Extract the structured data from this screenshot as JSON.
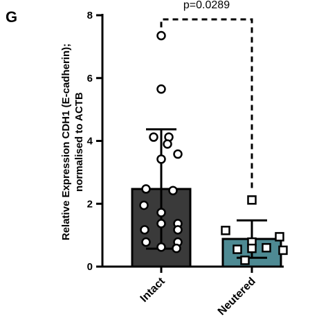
{
  "panel_label": "G",
  "chart_data": {
    "type": "bar",
    "title": "",
    "ylabel_line1": "Relative Expression CDH1 (E-cadherin);",
    "ylabel_line2": "normalised to ACTB",
    "ylim": [
      0,
      8
    ],
    "yticks": [
      {
        "value": 0,
        "label": "0"
      },
      {
        "value": 2,
        "label": "2"
      },
      {
        "value": 4,
        "label": "4"
      },
      {
        "value": 6,
        "label": "6"
      },
      {
        "value": 8,
        "label": "8"
      }
    ],
    "categories": [
      "Intact",
      "Neutered"
    ],
    "bars": [
      {
        "category": "Intact",
        "mean": 2.47,
        "sd_upper": 4.37,
        "sd_lower": 0.57,
        "color": "#3a3a3a",
        "marker": "circle",
        "points": [
          7.35,
          5.65,
          4.12,
          4.12,
          3.9,
          3.42,
          3.58,
          2.47,
          2.42,
          1.95,
          1.72,
          1.37,
          1.37,
          1.17,
          1.17,
          0.78,
          0.78,
          0.62,
          0.58
        ]
      },
      {
        "category": "Neutered",
        "mean": 0.88,
        "sd_upper": 1.47,
        "sd_lower": 0.28,
        "color": "#4e8a93",
        "marker": "square",
        "points": [
          2.12,
          1.15,
          0.95,
          0.78,
          0.6,
          0.58,
          0.55,
          0.52,
          0.2
        ]
      }
    ],
    "significance": {
      "text": "p=0.0289",
      "from": "Intact",
      "to": "Neutered"
    },
    "grid": false,
    "legend": "none"
  }
}
